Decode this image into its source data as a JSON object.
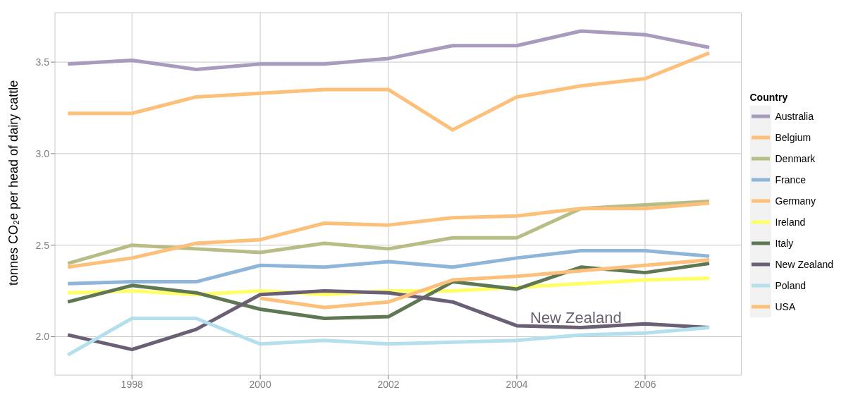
{
  "chart_data": {
    "type": "line",
    "ylabel": "tonnes CO₂e per head of dairy cattle",
    "legend_title": "Country",
    "legend": "right",
    "grid": true,
    "line_style": "solid",
    "marker": "none",
    "x": [
      1997,
      1998,
      1999,
      2000,
      2001,
      2002,
      2003,
      2004,
      2005,
      2006,
      2007
    ],
    "xlim": [
      1996.8,
      2007.5
    ],
    "xticks": [
      1998,
      2000,
      2002,
      2004,
      2006
    ],
    "ylim": [
      1.79,
      3.77
    ],
    "yticks": [
      {
        "value": 2,
        "label": "2.0"
      },
      {
        "value": 2.5,
        "label": "2.5"
      },
      {
        "value": 3,
        "label": "3.0"
      },
      {
        "value": 3.5,
        "label": "3.5"
      }
    ],
    "series": [
      {
        "name": "Australia",
        "color": "#a89bbd",
        "values": [
          3.49,
          3.51,
          3.46,
          3.49,
          3.49,
          3.52,
          3.59,
          3.59,
          3.67,
          3.65,
          3.58
        ]
      },
      {
        "name": "Belgium",
        "color": "#fdc07a",
        "values": [
          3.22,
          3.22,
          3.31,
          3.33,
          3.35,
          3.35,
          3.13,
          3.31,
          3.37,
          3.41,
          3.55
        ]
      },
      {
        "name": "Denmark",
        "color": "#b8bd86",
        "values": [
          2.4,
          2.5,
          2.48,
          2.46,
          2.51,
          2.48,
          2.54,
          2.54,
          2.7,
          2.72,
          2.74
        ]
      },
      {
        "name": "France",
        "color": "#8fb6d8",
        "values": [
          2.29,
          2.3,
          2.3,
          2.39,
          2.38,
          2.41,
          2.38,
          2.43,
          2.47,
          2.47,
          2.44
        ]
      },
      {
        "name": "Germany",
        "color": "#fdc07a",
        "values": [
          2.38,
          2.43,
          2.51,
          2.53,
          2.62,
          2.61,
          2.65,
          2.66,
          2.7,
          2.7,
          2.73
        ]
      },
      {
        "name": "Ireland",
        "color": "#ffff66",
        "values": [
          2.24,
          2.25,
          2.23,
          2.25,
          2.23,
          2.25,
          2.25,
          2.27,
          2.29,
          2.31,
          2.32
        ]
      },
      {
        "name": "Italy",
        "color": "#5f7753",
        "values": [
          2.19,
          2.28,
          2.24,
          2.15,
          2.1,
          2.11,
          2.3,
          2.26,
          2.38,
          2.35,
          2.4
        ]
      },
      {
        "name": "New Zealand",
        "color": "#6a5f74",
        "values": [
          2.01,
          1.93,
          2.04,
          2.23,
          2.25,
          2.24,
          2.19,
          2.06,
          2.05,
          2.07,
          2.05
        ]
      },
      {
        "name": "Poland",
        "color": "#b3e0ec",
        "values": [
          1.9,
          2.1,
          2.1,
          1.96,
          1.98,
          1.96,
          1.97,
          1.98,
          2.01,
          2.02,
          2.05
        ]
      },
      {
        "name": "USA",
        "color": "#fdc07a",
        "values": [
          null,
          null,
          null,
          2.21,
          2.16,
          2.19,
          2.31,
          2.33,
          2.36,
          2.39,
          2.42
        ]
      }
    ],
    "annotations": [
      "New Zealand"
    ]
  }
}
